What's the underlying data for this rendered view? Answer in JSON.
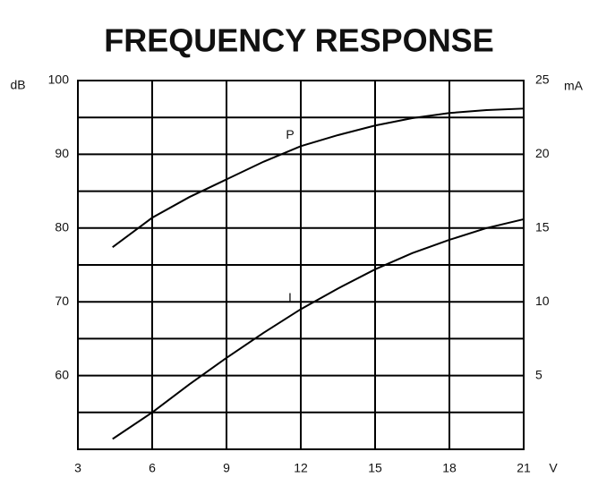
{
  "chart_data": {
    "type": "line",
    "title": "FREQUENCY RESPONSE",
    "x_unit": "V",
    "y_unit": "dB",
    "y2_unit": "mA",
    "x": [
      4.4,
      6,
      7.5,
      9,
      10.5,
      12,
      13.5,
      15,
      16.5,
      18,
      19.5,
      21
    ],
    "series": [
      {
        "name": "P",
        "color": "#000000",
        "values": [
          77.4,
          81.4,
          84.2,
          86.6,
          89.0,
          91.1,
          92.6,
          93.9,
          94.9,
          95.6,
          96.0,
          96.2
        ]
      },
      {
        "name": "I",
        "color": "#000000",
        "axis": "y2",
        "values": [
          0.7,
          2.5,
          4.4,
          6.2,
          7.9,
          9.5,
          10.9,
          12.2,
          13.3,
          14.2,
          15.0,
          15.6
        ]
      }
    ],
    "xlim": [
      3,
      21
    ],
    "xticks": [
      3,
      6,
      9,
      12,
      15,
      18,
      21
    ],
    "ylim": [
      50,
      100
    ],
    "yticks": [
      60,
      70,
      80,
      90,
      100
    ],
    "y_minor_ticks": [
      55,
      65,
      75,
      85,
      95
    ],
    "y2lim": [
      0,
      25
    ],
    "y2ticks": [
      5,
      10,
      15,
      20,
      25
    ],
    "grid": true
  }
}
